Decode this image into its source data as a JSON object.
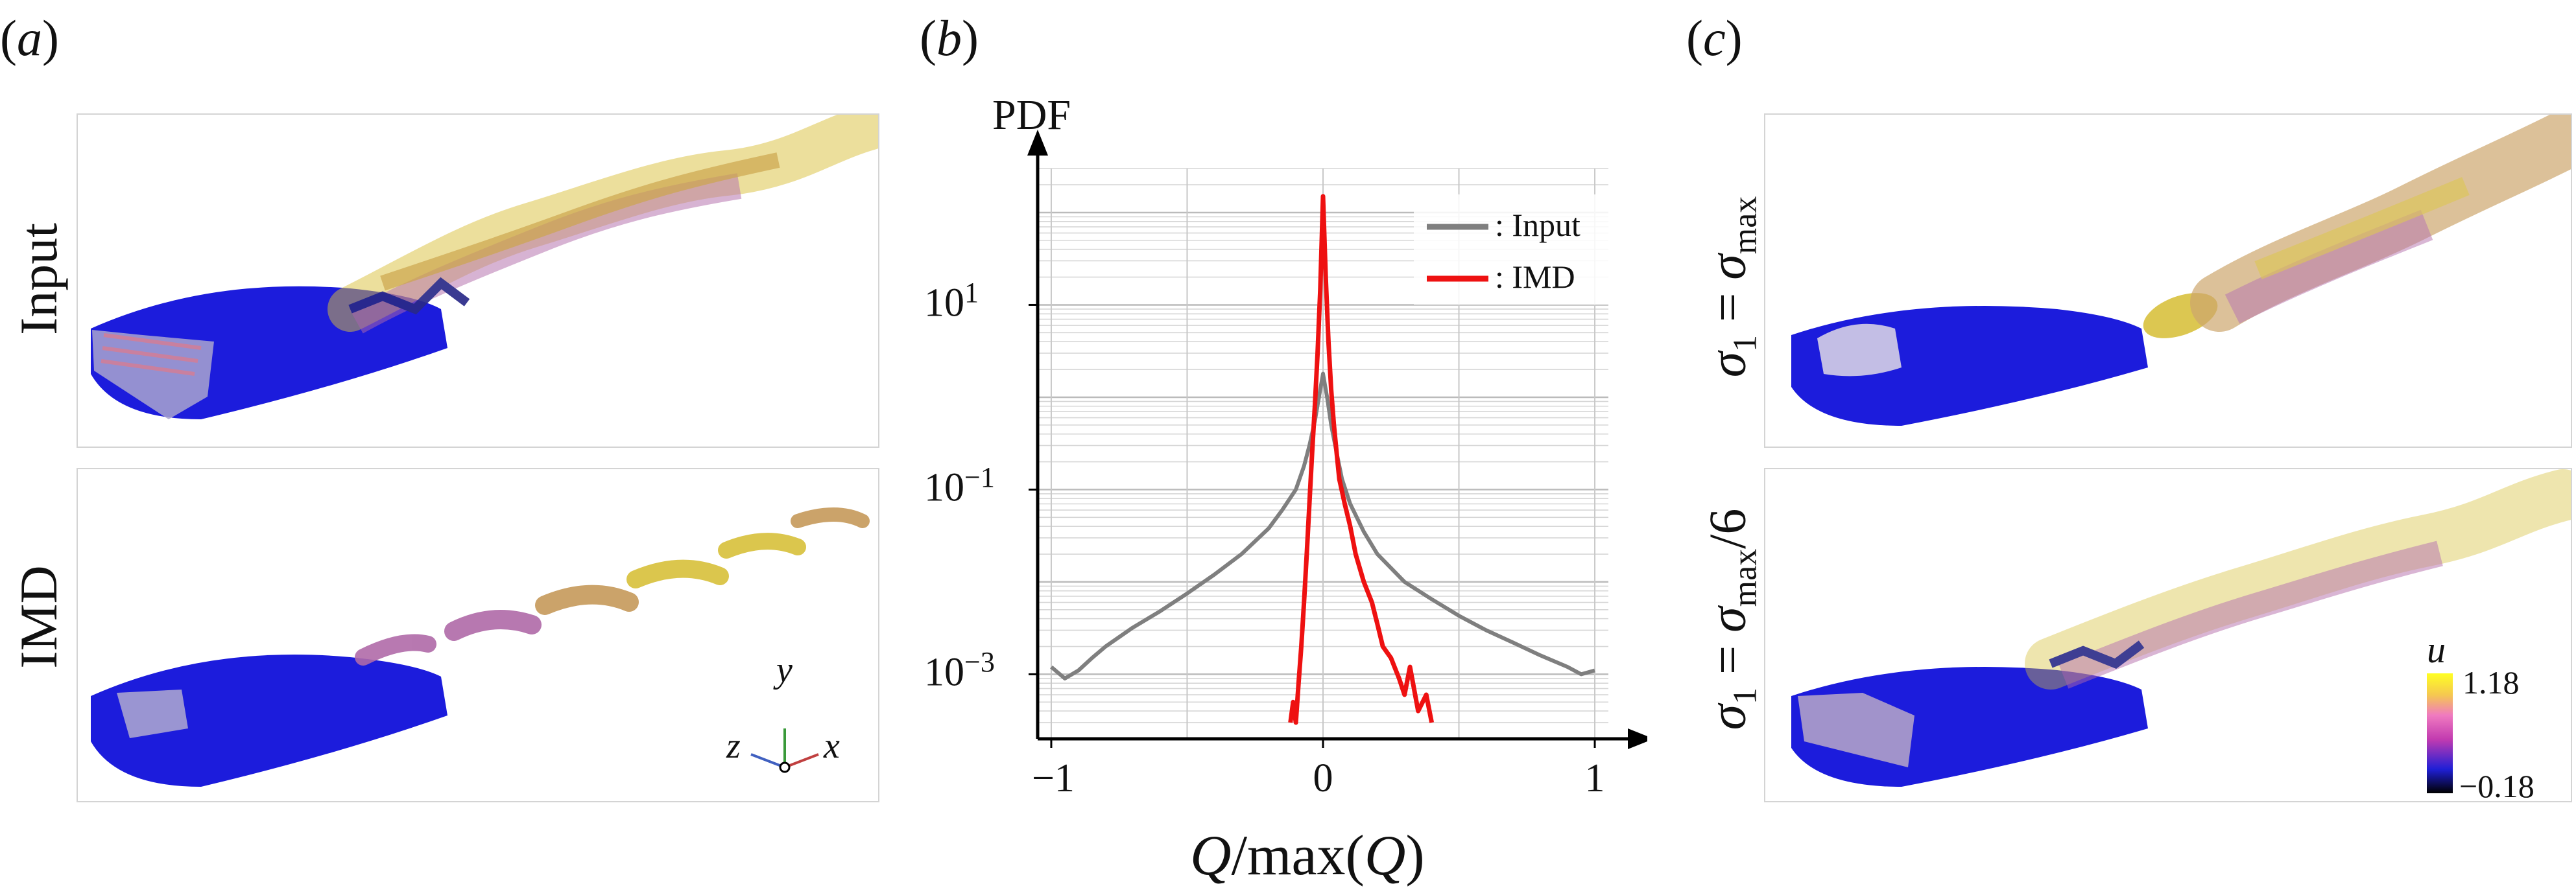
{
  "panels": {
    "a": {
      "label": "a"
    },
    "b": {
      "label": "b"
    },
    "c": {
      "label": "c"
    }
  },
  "panel_a": {
    "rows": [
      "Input",
      "IMD"
    ],
    "axes": {
      "x": "x",
      "y": "y",
      "z": "z"
    }
  },
  "panel_c": {
    "colorbar": {
      "variable": "u",
      "max": "1.18",
      "min": "−0.18",
      "colors": [
        "#000000",
        "#1f1fd6",
        "#c23bb0",
        "#f07ac0",
        "#f5c850",
        "#ffff22"
      ]
    }
  },
  "colors": {
    "airfoil": "#1c1cdc",
    "input_line": "#7f7f7f",
    "imd_line": "#ee1111",
    "vortex_yellow": "#d8c03a",
    "vortex_magenta": "#b06aa8"
  },
  "chart_data": {
    "type": "line",
    "title": "",
    "ylabel": "PDF",
    "xlabel_parts": {
      "q1": "Q",
      "mid": "/max(",
      "q2": "Q",
      "end": ")"
    },
    "yscale": "log",
    "xlim": [
      -1.05,
      1.05
    ],
    "ylim": [
      0.0002,
      300
    ],
    "xticks": [
      {
        "v": -1,
        "label": "−1"
      },
      {
        "v": 0,
        "label": "0"
      },
      {
        "v": 1,
        "label": "1"
      }
    ],
    "yticks": [
      {
        "v": 0.001,
        "base": "10",
        "exp": "−3"
      },
      {
        "v": 0.1,
        "base": "10",
        "exp": "−1"
      },
      {
        "v": 10,
        "base": "10",
        "exp": "1"
      }
    ],
    "grid": true,
    "legend_position": "top-right",
    "series": [
      {
        "name": ": Input",
        "color": "#7f7f7f",
        "x": [
          -1.0,
          -0.95,
          -0.9,
          -0.85,
          -0.8,
          -0.7,
          -0.6,
          -0.5,
          -0.4,
          -0.3,
          -0.2,
          -0.15,
          -0.1,
          -0.07,
          -0.05,
          -0.03,
          -0.015,
          0.0,
          0.015,
          0.03,
          0.05,
          0.07,
          0.1,
          0.15,
          0.2,
          0.3,
          0.4,
          0.5,
          0.6,
          0.7,
          0.8,
          0.9,
          0.95,
          1.0
        ],
        "y": [
          0.0012,
          0.0009,
          0.0011,
          0.0015,
          0.002,
          0.0032,
          0.0048,
          0.0075,
          0.012,
          0.02,
          0.038,
          0.06,
          0.1,
          0.18,
          0.3,
          0.55,
          1.0,
          1.8,
          1.0,
          0.5,
          0.25,
          0.13,
          0.07,
          0.035,
          0.02,
          0.01,
          0.0065,
          0.0043,
          0.003,
          0.0022,
          0.0016,
          0.0012,
          0.001,
          0.0011
        ]
      },
      {
        "name": ": IMD",
        "color": "#ee1111",
        "x": [
          -0.12,
          -0.11,
          -0.1,
          -0.09,
          -0.08,
          -0.07,
          -0.06,
          -0.05,
          -0.04,
          -0.03,
          -0.02,
          -0.01,
          0.0,
          0.01,
          0.02,
          0.03,
          0.04,
          0.05,
          0.06,
          0.08,
          0.1,
          0.12,
          0.15,
          0.18,
          0.2,
          0.22,
          0.25,
          0.28,
          0.3,
          0.32,
          0.35,
          0.38,
          0.4
        ],
        "y": [
          0.0003,
          0.0005,
          0.0003,
          0.0008,
          0.002,
          0.006,
          0.02,
          0.07,
          0.25,
          0.8,
          3.0,
          15.0,
          150.0,
          20.0,
          4.0,
          1.2,
          0.5,
          0.25,
          0.13,
          0.07,
          0.04,
          0.02,
          0.01,
          0.006,
          0.0035,
          0.002,
          0.0015,
          0.0009,
          0.0006,
          0.0012,
          0.0004,
          0.0006,
          0.0003
        ]
      }
    ]
  }
}
